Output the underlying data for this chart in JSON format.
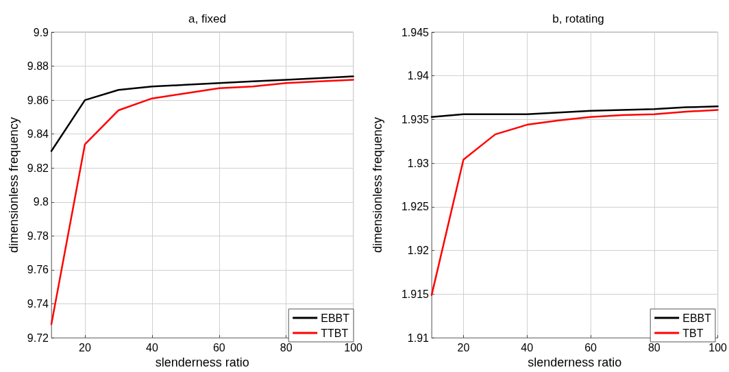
{
  "chart_data": [
    {
      "type": "line",
      "title": "a, fixed",
      "xlabel": "slenderness ratio",
      "ylabel": "dimensionless frequency",
      "x": [
        10,
        20,
        30,
        40,
        50,
        60,
        70,
        80,
        90,
        100
      ],
      "series": [
        {
          "name": "EBBT",
          "color": "#000000",
          "values": [
            9.83,
            9.86,
            9.866,
            9.868,
            9.869,
            9.87,
            9.871,
            9.872,
            9.873,
            9.874
          ]
        },
        {
          "name": "TTBT",
          "color": "#ff0000",
          "values": [
            9.728,
            9.834,
            9.854,
            9.861,
            9.864,
            9.867,
            9.868,
            9.87,
            9.871,
            9.872
          ]
        }
      ],
      "xlim": [
        10,
        100
      ],
      "xticks": [
        20,
        40,
        60,
        80,
        100
      ],
      "ylim": [
        9.72,
        9.9
      ],
      "yticks": [
        9.72,
        9.74,
        9.76,
        9.78,
        9.8,
        9.82,
        9.84,
        9.86,
        9.88,
        9.9
      ],
      "grid": true,
      "legend": "bottom right",
      "marker": "none",
      "line_style": "solid"
    },
    {
      "type": "line",
      "title": "b, rotating",
      "xlabel": "slenderness ratio",
      "ylabel": "dimensionless frequency",
      "x": [
        10,
        20,
        30,
        40,
        50,
        60,
        70,
        80,
        90,
        100
      ],
      "series": [
        {
          "name": "EBBT",
          "color": "#000000",
          "values": [
            1.9353,
            1.9356,
            1.9356,
            1.9356,
            1.9358,
            1.936,
            1.9361,
            1.9362,
            1.9364,
            1.9365
          ]
        },
        {
          "name": "TBT",
          "color": "#ff0000",
          "values": [
            1.9149,
            1.9304,
            1.9333,
            1.9344,
            1.9349,
            1.9353,
            1.9355,
            1.9356,
            1.9359,
            1.9361
          ]
        }
      ],
      "xlim": [
        10,
        100
      ],
      "xticks": [
        20,
        40,
        60,
        80,
        100
      ],
      "ylim": [
        1.91,
        1.945
      ],
      "yticks": [
        1.91,
        1.915,
        1.92,
        1.925,
        1.93,
        1.935,
        1.94,
        1.945
      ],
      "grid": true,
      "legend": "bottom right",
      "marker": "none",
      "line_style": "solid"
    }
  ]
}
